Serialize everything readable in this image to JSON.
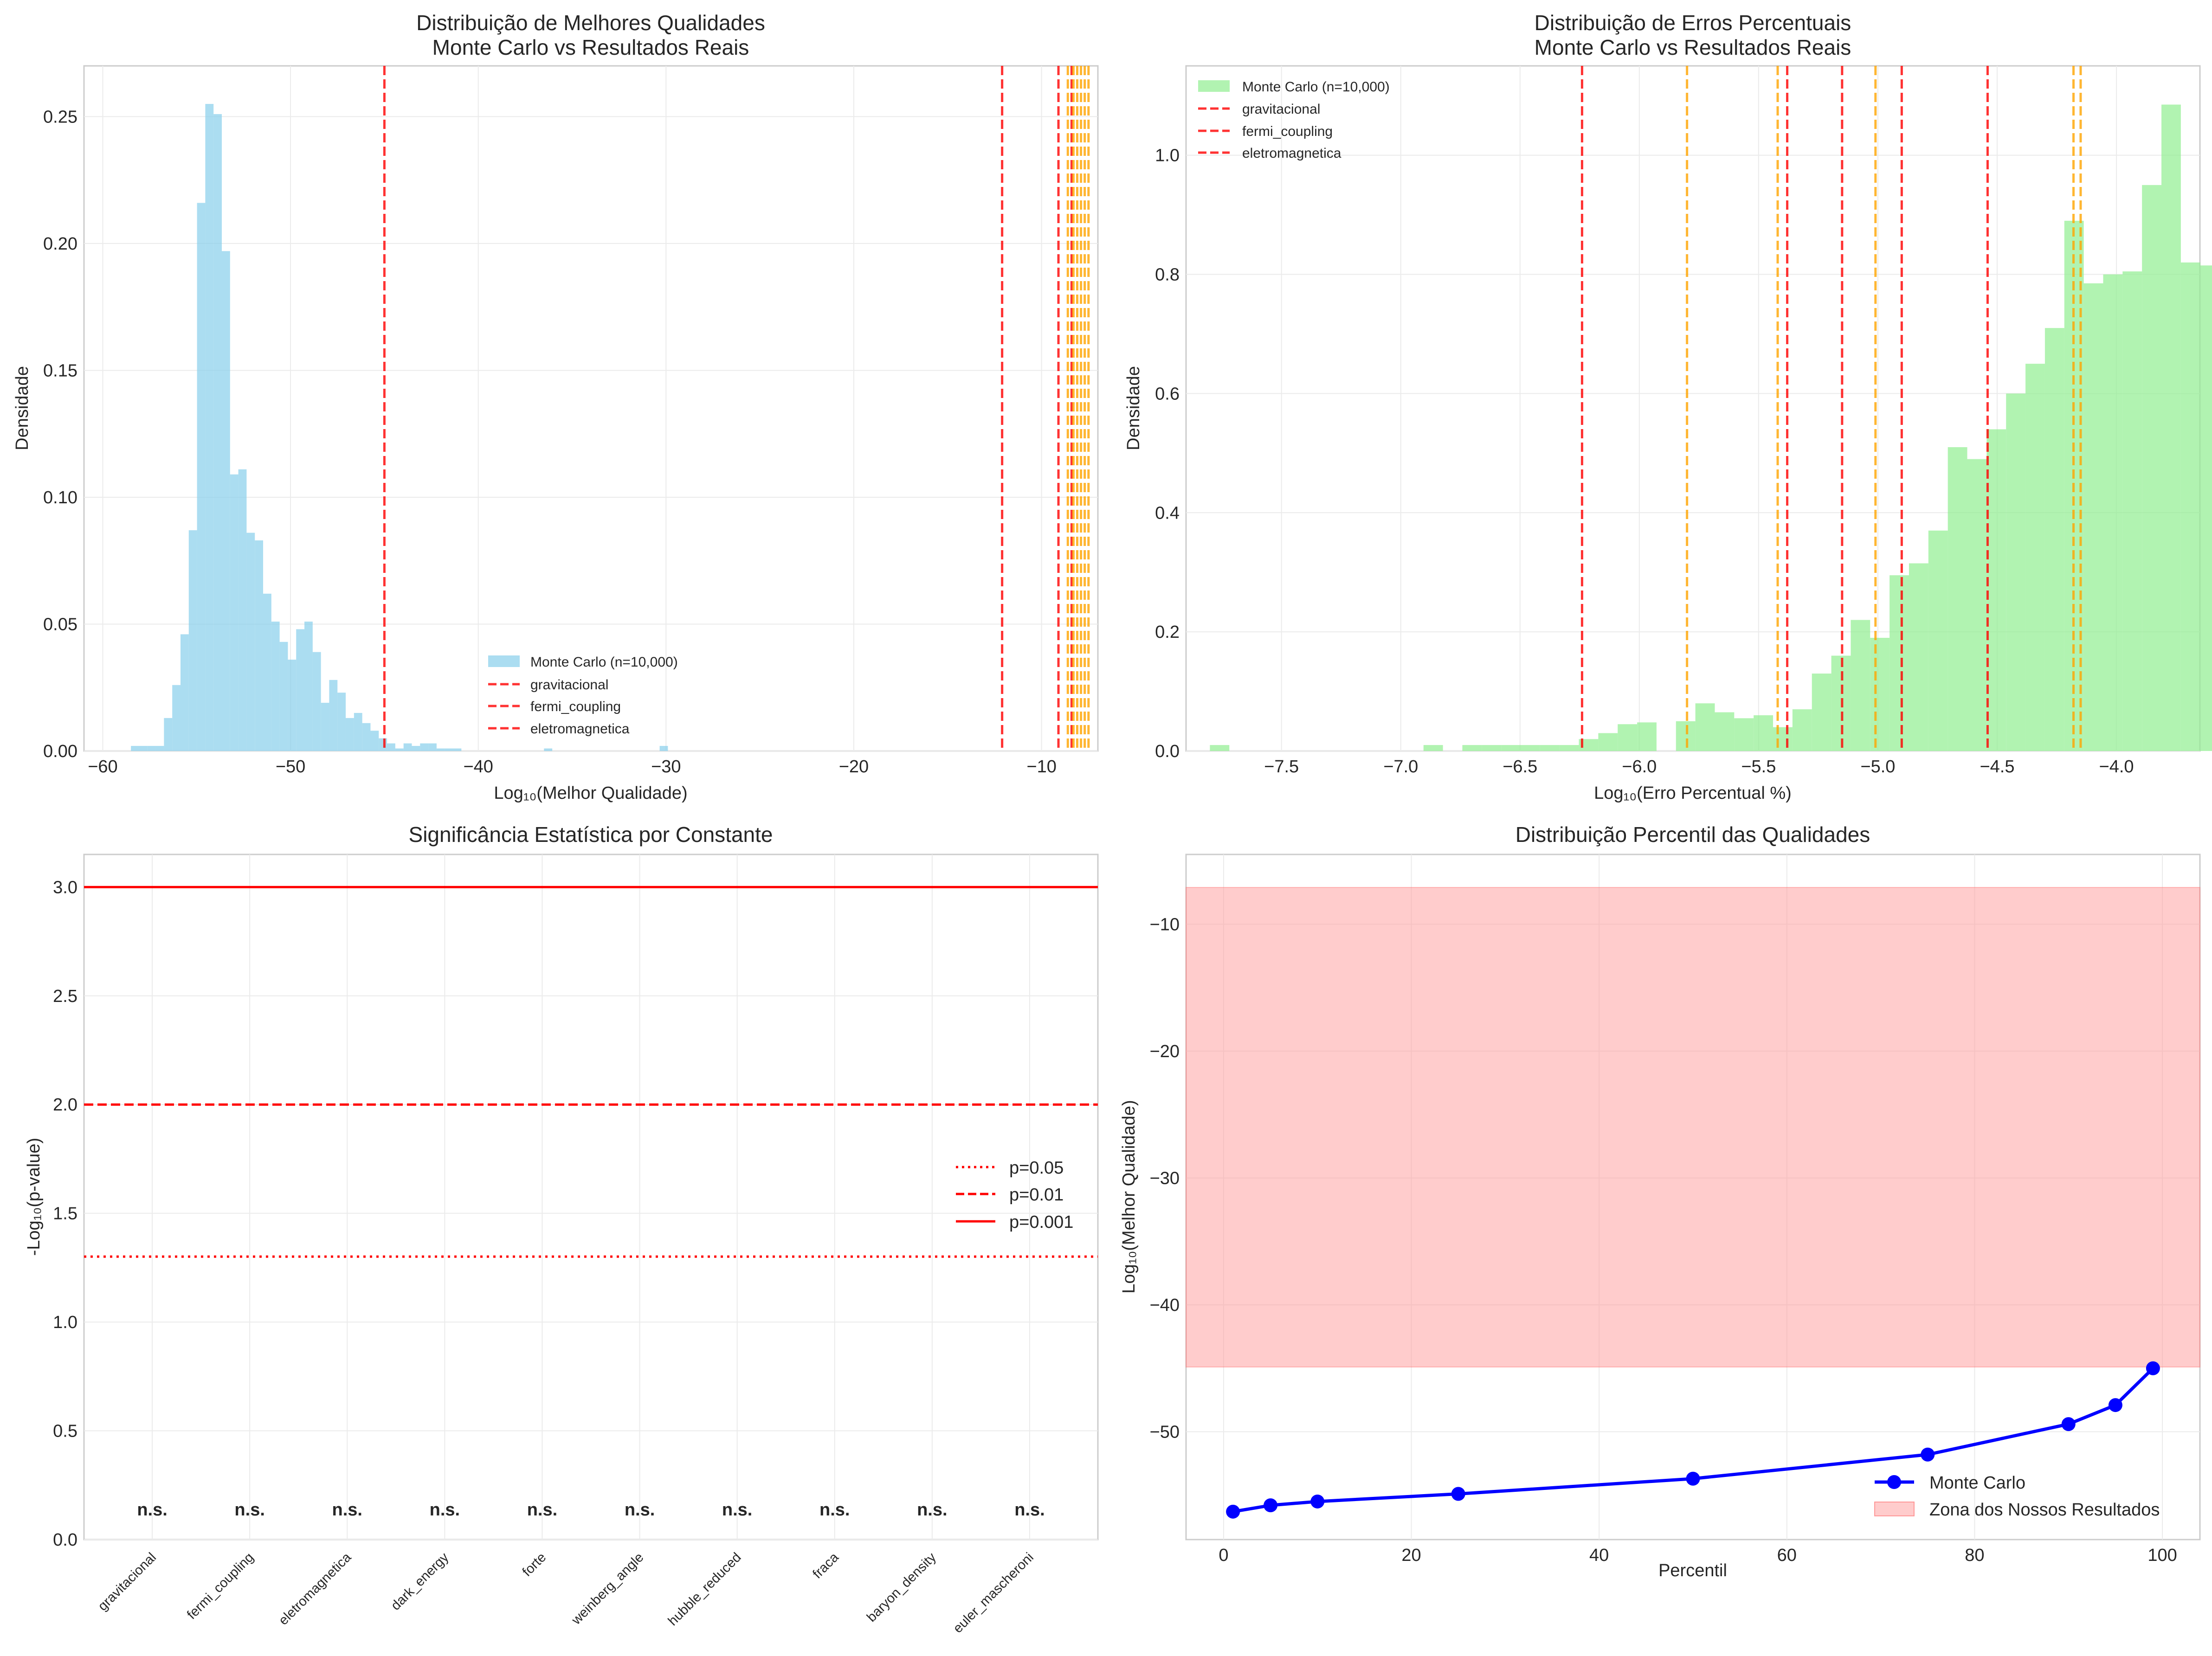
{
  "chart_data": [
    {
      "type": "bar",
      "kind": "histogram",
      "title": "Distribuição de Melhores Qualidades\nMonte Carlo vs Resultados Reais",
      "xlabel": "Log₁₀(Melhor Qualidade)",
      "ylabel": "Densidade",
      "xlim": [
        -61,
        -7
      ],
      "ylim": [
        0,
        0.27
      ],
      "xticks": [
        -60,
        -50,
        -40,
        -30,
        -20,
        -10
      ],
      "yticks": [
        0.0,
        0.05,
        0.1,
        0.15,
        0.2,
        0.25
      ],
      "grid": true,
      "legend_position": "lower-center",
      "series": [
        {
          "name": "Monte Carlo (n=10,000)",
          "color": "#87ceeb"
        }
      ],
      "bins": {
        "start": -58.5,
        "width": 0.44
      },
      "values": [
        0.002,
        0.002,
        0.002,
        0.002,
        0.013,
        0.026,
        0.046,
        0.087,
        0.216,
        0.255,
        0.251,
        0.197,
        0.109,
        0.111,
        0.086,
        0.083,
        0.062,
        0.051,
        0.043,
        0.036,
        0.048,
        0.051,
        0.039,
        0.019,
        0.028,
        0.023,
        0.013,
        0.015,
        0.011,
        0.008,
        0.005,
        0.003,
        0.001,
        0.003,
        0.002,
        0.003,
        0.003,
        0.001,
        0.001,
        0.001,
        0,
        0,
        0,
        0,
        0,
        0,
        0,
        0,
        0,
        0,
        0.001,
        0,
        0,
        0,
        0,
        0,
        0,
        0,
        0,
        0,
        0,
        0,
        0,
        0,
        0.002
      ],
      "vlines": [
        {
          "x": -45.0,
          "color": "#ff0000",
          "style": "dashed"
        },
        {
          "x": -12.1,
          "color": "#ff0000",
          "style": "dashed"
        },
        {
          "x": -9.1,
          "color": "#ff0000",
          "style": "dashed"
        },
        {
          "x": -8.4,
          "color": "#ff0000",
          "style": "dashed"
        },
        {
          "x": -8.6,
          "color": "#ffa500",
          "style": "dashed"
        },
        {
          "x": -8.3,
          "color": "#ffa500",
          "style": "dashed"
        },
        {
          "x": -8.1,
          "color": "#ffa500",
          "style": "dashed"
        },
        {
          "x": -7.9,
          "color": "#ffa500",
          "style": "dashed"
        },
        {
          "x": -7.7,
          "color": "#ffa500",
          "style": "dashed"
        },
        {
          "x": -7.5,
          "color": "#ffa500",
          "style": "dashed"
        }
      ],
      "legend": [
        "Monte Carlo (n=10,000)",
        "gravitacional",
        "fermi_coupling",
        "eletromagnetica"
      ]
    },
    {
      "type": "bar",
      "kind": "histogram",
      "title": "Distribuição de Erros Percentuais\nMonte Carlo vs Resultados Reais",
      "xlabel": "Log₁₀(Erro Percentual %)",
      "ylabel": "Densidade",
      "xlim": [
        -7.9,
        -3.65
      ],
      "ylim": [
        0,
        1.15
      ],
      "xticks": [
        -7.5,
        -7.0,
        -6.5,
        -6.0,
        -5.5,
        -5.0,
        -4.5,
        -4.0
      ],
      "yticks": [
        0.0,
        0.2,
        0.4,
        0.6,
        0.8,
        1.0
      ],
      "grid": true,
      "legend_position": "top-left",
      "series": [
        {
          "name": "Monte Carlo (n=10,000)",
          "color": "#90ee90"
        }
      ],
      "bins": {
        "start": -7.8,
        "width": 0.0814
      },
      "values": [
        0.01,
        0,
        0,
        0,
        0,
        0,
        0,
        0,
        0,
        0,
        0,
        0.01,
        0,
        0.01,
        0.01,
        0.01,
        0.01,
        0.01,
        0.01,
        0.02,
        0.03,
        0.045,
        0.048,
        0,
        0.05,
        0.08,
        0.065,
        0.055,
        0.06,
        0.04,
        0.07,
        0.13,
        0.16,
        0.22,
        0.19,
        0.295,
        0.315,
        0.37,
        0.51,
        0.49,
        0.54,
        0.6,
        0.65,
        0.71,
        0.89,
        0.785,
        0.8,
        0.805,
        0.95,
        1.085,
        0.82,
        0.815,
        0.77,
        0.645,
        0.585,
        0.33,
        0.285,
        0.08,
        0.055,
        0.01
      ],
      "vlines": [
        {
          "x": -6.24,
          "color": "#ff0000",
          "style": "dashed"
        },
        {
          "x": -5.38,
          "color": "#ff0000",
          "style": "dashed"
        },
        {
          "x": -5.15,
          "color": "#ff0000",
          "style": "dashed"
        },
        {
          "x": -4.9,
          "color": "#ff0000",
          "style": "dashed"
        },
        {
          "x": -4.54,
          "color": "#ff0000",
          "style": "dashed"
        },
        {
          "x": -5.8,
          "color": "#ffa500",
          "style": "dashed"
        },
        {
          "x": -5.42,
          "color": "#ffa500",
          "style": "dashed"
        },
        {
          "x": -5.01,
          "color": "#ffa500",
          "style": "dashed"
        },
        {
          "x": -4.18,
          "color": "#ffa500",
          "style": "dashed"
        },
        {
          "x": -4.15,
          "color": "#ffa500",
          "style": "dashed"
        }
      ],
      "legend": [
        "Monte Carlo (n=10,000)",
        "gravitacional",
        "fermi_coupling",
        "eletromagnetica"
      ]
    },
    {
      "type": "bar",
      "title": "Significância Estatística por Constante",
      "xlabel": "",
      "ylabel": "-Log₁₀(p-value)",
      "ylim": [
        0,
        3.15
      ],
      "yticks": [
        0.0,
        0.5,
        1.0,
        1.5,
        2.0,
        2.5,
        3.0
      ],
      "grid": true,
      "legend_position": "center-right",
      "categories": [
        "gravitacional",
        "fermi_coupling",
        "eletromagnetica",
        "dark_energy",
        "forte",
        "weinberg_angle",
        "hubble_reduced",
        "fraca",
        "baryon_density",
        "euler_mascheroni"
      ],
      "values": [
        0,
        0,
        0,
        0,
        0,
        0,
        0,
        0,
        0,
        0
      ],
      "bar_labels": [
        "n.s.",
        "n.s.",
        "n.s.",
        "n.s.",
        "n.s.",
        "n.s.",
        "n.s.",
        "n.s.",
        "n.s.",
        "n.s."
      ],
      "hlines": [
        {
          "y": 1.301,
          "label": "p=0.05",
          "color": "#ff0000",
          "style": "dotted"
        },
        {
          "y": 2.0,
          "label": "p=0.01",
          "color": "#ff0000",
          "style": "dashed"
        },
        {
          "y": 3.0,
          "label": "p=0.001",
          "color": "#ff0000",
          "style": "solid"
        }
      ]
    },
    {
      "type": "line",
      "title": "Distribuição Percentil das Qualidades",
      "xlabel": "Percentil",
      "ylabel": "Log₁₀(Melhor Qualidade)",
      "xlim": [
        -4,
        104
      ],
      "ylim": [
        -58.5,
        -4.5
      ],
      "xticks": [
        0,
        20,
        40,
        60,
        80,
        100
      ],
      "yticks": [
        -50,
        -40,
        -30,
        -20,
        -10
      ],
      "grid": true,
      "legend_position": "lower-right",
      "series": [
        {
          "name": "Monte Carlo",
          "color": "#0000ff",
          "x": [
            1,
            5,
            10,
            25,
            50,
            75,
            90,
            95,
            99
          ],
          "y": [
            -56.3,
            -55.8,
            -55.5,
            -54.9,
            -53.7,
            -51.8,
            -49.4,
            -47.9,
            -45.0
          ]
        }
      ],
      "band": {
        "label": "Zona dos Nossos Resultados",
        "y0": -44.9,
        "y1": -7.1,
        "color": "#ff9999"
      }
    }
  ]
}
